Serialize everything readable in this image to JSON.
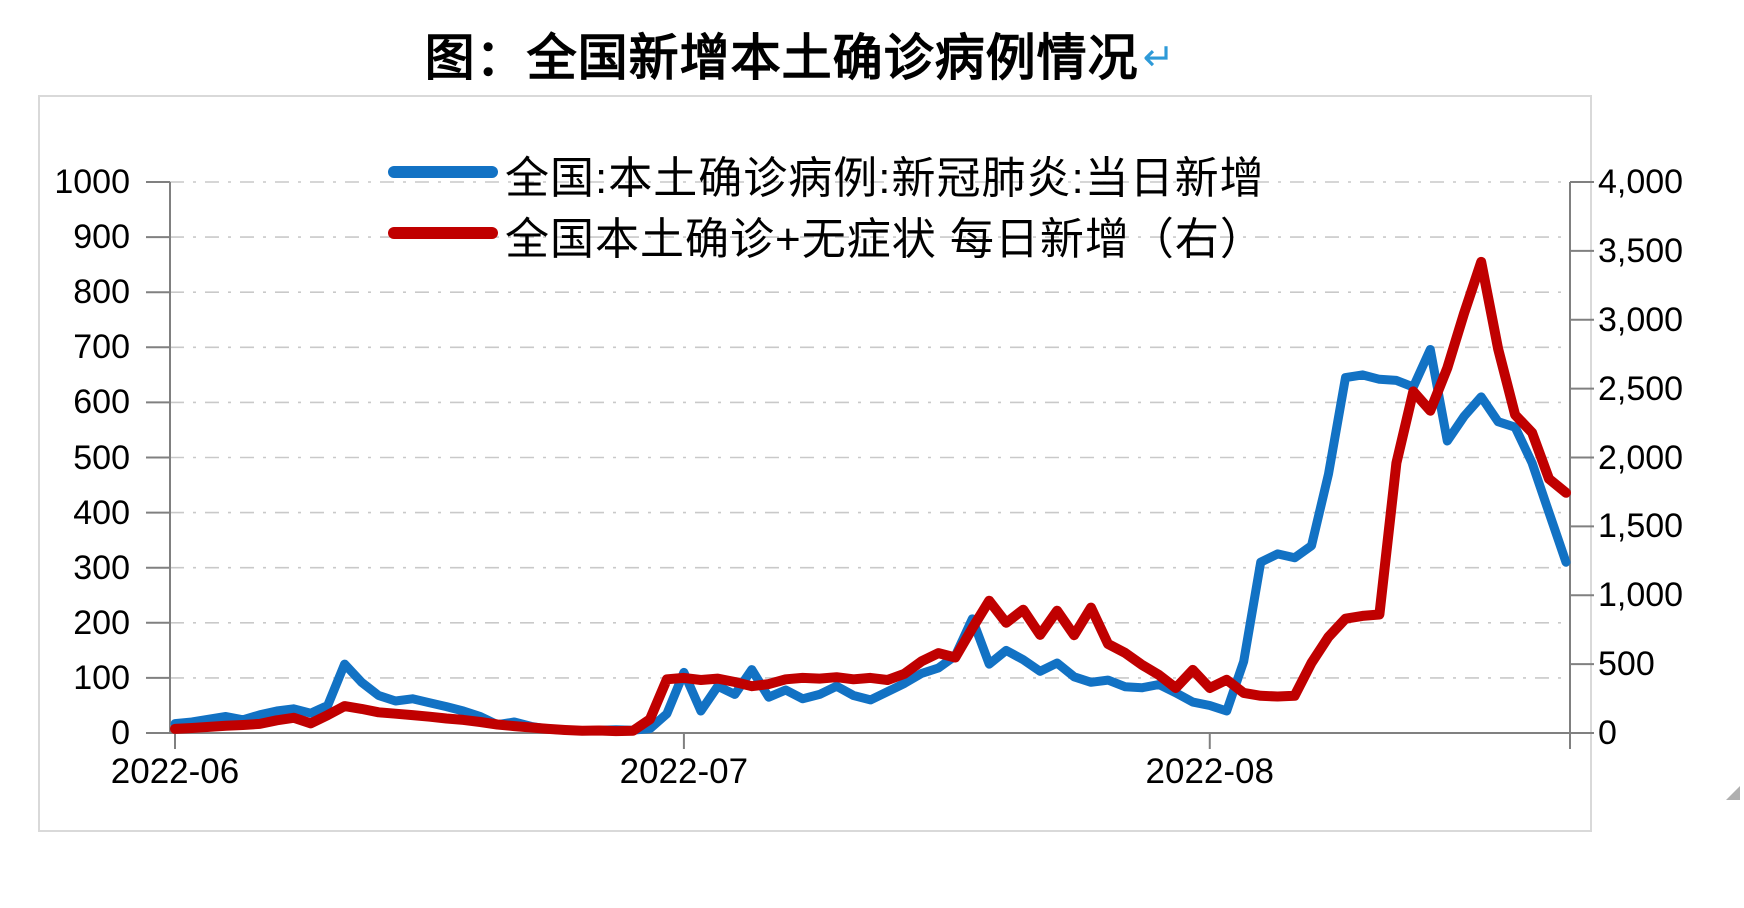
{
  "page": {
    "title": "图：全国新增本土确诊病例情况",
    "return_mark": "↵"
  },
  "colors": {
    "series_blue": "#1272C4",
    "series_red": "#C00000",
    "axis_line": "#808080",
    "gridline": "#C9C9C9",
    "chart_border": "#D9D9D9",
    "title_text": "#000000",
    "return_mark_blue": "#2E9AD8"
  },
  "chart_data": {
    "type": "line",
    "title": "图：全国新增本土确诊病例情况",
    "x_tick_labels": [
      "2022-06",
      "2022-07",
      "2022-08"
    ],
    "x_tick_day_index": [
      0,
      30,
      61
    ],
    "x_range_note": "daily points starting 2022-06",
    "n_points": 83,
    "grid": {
      "style": "dash-dot",
      "orientation": "horizontal"
    },
    "legend_position": "top-center",
    "left_axis": {
      "min": 0,
      "max": 1000,
      "tick_step": 100,
      "tick_labels": [
        "0",
        "100",
        "200",
        "300",
        "400",
        "500",
        "600",
        "700",
        "800",
        "900",
        "1000"
      ]
    },
    "right_axis": {
      "min": 0,
      "max": 4000,
      "tick_step": 500,
      "tick_labels": [
        "0",
        "500",
        "1,000",
        "1,500",
        "2,000",
        "2,500",
        "3,000",
        "3,500",
        "4,000"
      ]
    },
    "series": [
      {
        "name": "全国:本土确诊病例:新冠肺炎:当日新增",
        "axis": "left",
        "color": "#1272C4",
        "stroke_width": 9,
        "values": [
          17,
          20,
          25,
          30,
          24,
          33,
          40,
          44,
          36,
          50,
          125,
          92,
          68,
          58,
          62,
          55,
          48,
          40,
          30,
          15,
          20,
          12,
          7,
          5,
          4,
          5,
          6,
          5,
          8,
          35,
          110,
          40,
          85,
          70,
          115,
          65,
          78,
          62,
          70,
          85,
          68,
          60,
          75,
          90,
          108,
          118,
          140,
          207,
          125,
          150,
          133,
          112,
          127,
          102,
          92,
          96,
          84,
          82,
          88,
          73,
          56,
          50,
          40,
          130,
          310,
          325,
          318,
          340,
          470,
          645,
          650,
          642,
          640,
          628,
          696,
          530,
          575,
          610,
          565,
          555,
          490,
          400,
          310
        ]
      },
      {
        "name": "全国本土确诊+无症状 每日新增（右）",
        "axis": "right",
        "color": "#C00000",
        "stroke_width": 10,
        "values": [
          30,
          36,
          44,
          52,
          58,
          66,
          92,
          110,
          70,
          130,
          195,
          175,
          150,
          140,
          130,
          118,
          105,
          95,
          80,
          62,
          50,
          40,
          30,
          22,
          16,
          18,
          14,
          16,
          100,
          390,
          400,
          385,
          395,
          370,
          340,
          355,
          390,
          400,
          395,
          405,
          390,
          400,
          385,
          430,
          520,
          580,
          548,
          760,
          960,
          800,
          895,
          712,
          888,
          710,
          910,
          647,
          582,
          495,
          422,
          327,
          458,
          327,
          386,
          291,
          270,
          265,
          270,
          509,
          698,
          830,
          850,
          860,
          1960,
          2480,
          2340,
          2650,
          3050,
          3420,
          2790,
          2310,
          2180,
          1845,
          1744
        ]
      }
    ]
  }
}
